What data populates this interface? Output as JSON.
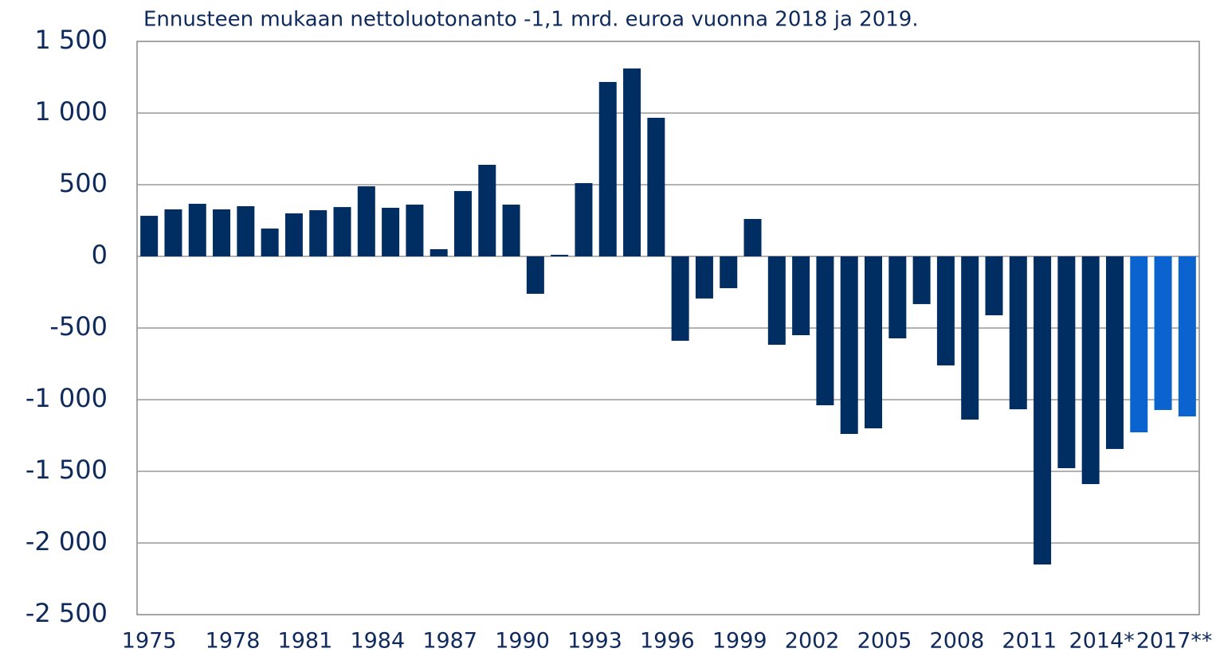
{
  "chart_data": {
    "type": "bar",
    "title": "Ennusteen mukaan nettoluotonanto -1,1 mrd. euroa vuonna 2018 ja 2019.",
    "categories": [
      "1975",
      null,
      null,
      "1978",
      null,
      null,
      "1981",
      null,
      null,
      "1984",
      null,
      null,
      "1987",
      null,
      null,
      "1990",
      null,
      null,
      "1993",
      null,
      null,
      "1996",
      null,
      null,
      "1999",
      null,
      null,
      "2002",
      null,
      null,
      "2005",
      null,
      null,
      "2008",
      null,
      null,
      "2011",
      null,
      null,
      "2014*",
      null,
      null,
      "2017**",
      null
    ],
    "values": [
      283,
      328,
      367,
      328,
      350,
      194,
      300,
      322,
      344,
      489,
      339,
      361,
      50,
      456,
      639,
      361,
      -261,
      11,
      511,
      1217,
      1311,
      967,
      -589,
      -294,
      -222,
      261,
      -617,
      -550,
      -1039,
      -1239,
      -1200,
      -572,
      -333,
      -761,
      -1139,
      -411,
      -1067,
      -2150,
      -1478,
      -1589,
      -1344,
      -1228,
      -1072,
      -1117
    ],
    "colors": [
      "#002d62",
      "#002d62",
      "#002d62",
      "#002d62",
      "#002d62",
      "#002d62",
      "#002d62",
      "#002d62",
      "#002d62",
      "#002d62",
      "#002d62",
      "#002d62",
      "#002d62",
      "#002d62",
      "#002d62",
      "#002d62",
      "#002d62",
      "#002d62",
      "#002d62",
      "#002d62",
      "#002d62",
      "#002d62",
      "#002d62",
      "#002d62",
      "#002d62",
      "#002d62",
      "#002d62",
      "#002d62",
      "#002d62",
      "#002d62",
      "#002d62",
      "#002d62",
      "#002d62",
      "#002d62",
      "#002d62",
      "#002d62",
      "#002d62",
      "#002d62",
      "#002d62",
      "#002d62",
      "#002d62",
      "#0a63cf",
      "#0a63cf",
      "#0a63cf"
    ],
    "ylim": [
      -2500,
      1500
    ],
    "yticks": [
      {
        "value": -2500,
        "label": "-2 500"
      },
      {
        "value": -2000,
        "label": "-2 000"
      },
      {
        "value": -1500,
        "label": "-1 500"
      },
      {
        "value": -1000,
        "label": "-1 000"
      },
      -500,
      0,
      500,
      {
        "value": 1000,
        "label": "1 000"
      },
      {
        "value": 1500,
        "label": "1 500"
      }
    ],
    "grid": true
  }
}
